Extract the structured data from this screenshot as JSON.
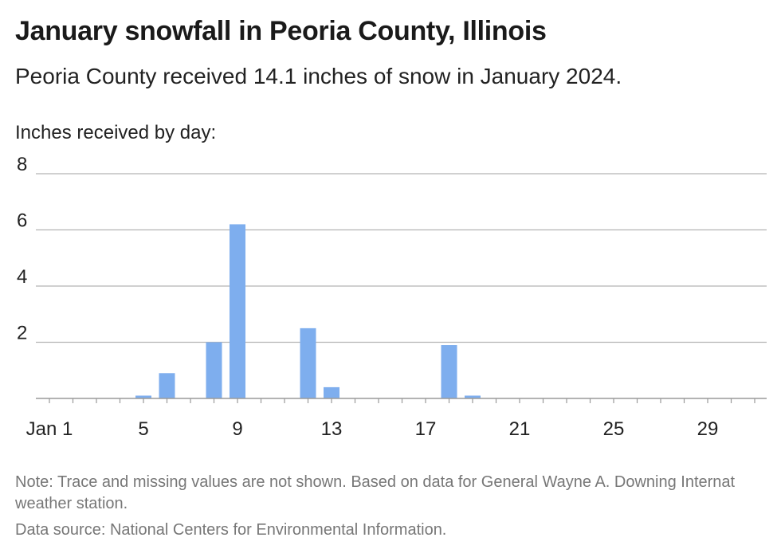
{
  "header": {
    "title": "January snowfall in Peoria County, Illinois",
    "subtitle": "Peoria County received 14.1 inches of snow in January 2024.",
    "axis_caption": "Inches received by day:"
  },
  "footer": {
    "note": "Note: Trace and missing values are not shown. Based on data for General Wayne A. Downing Internat weather station.",
    "source": "Data source: National Centers for Environmental Information."
  },
  "colors": {
    "bar": "#7eaeee",
    "grid": "#b3b3b3",
    "axis": "#9a9a9a"
  },
  "chart_data": {
    "type": "bar",
    "x": [
      1,
      2,
      3,
      4,
      5,
      6,
      7,
      8,
      9,
      10,
      11,
      12,
      13,
      14,
      15,
      16,
      17,
      18,
      19,
      20,
      21,
      22,
      23,
      24,
      25,
      26,
      27,
      28,
      29,
      30,
      31
    ],
    "values": [
      0,
      0,
      0,
      0,
      0.1,
      0.9,
      0,
      2.0,
      6.2,
      0,
      0,
      2.5,
      0.4,
      0,
      0,
      0,
      0,
      1.9,
      0.1,
      0,
      0,
      0,
      0,
      0,
      0,
      0,
      0,
      0,
      0,
      0,
      0
    ],
    "xticks": [
      1,
      5,
      9,
      13,
      17,
      21,
      25,
      29
    ],
    "xtick_labels": [
      "Jan 1",
      "5",
      "9",
      "13",
      "17",
      "21",
      "25",
      "29"
    ],
    "yticks": [
      2,
      4,
      6,
      8
    ],
    "ylim": [
      0,
      8
    ],
    "ylabel": "Inches received by day:",
    "grid": true
  }
}
